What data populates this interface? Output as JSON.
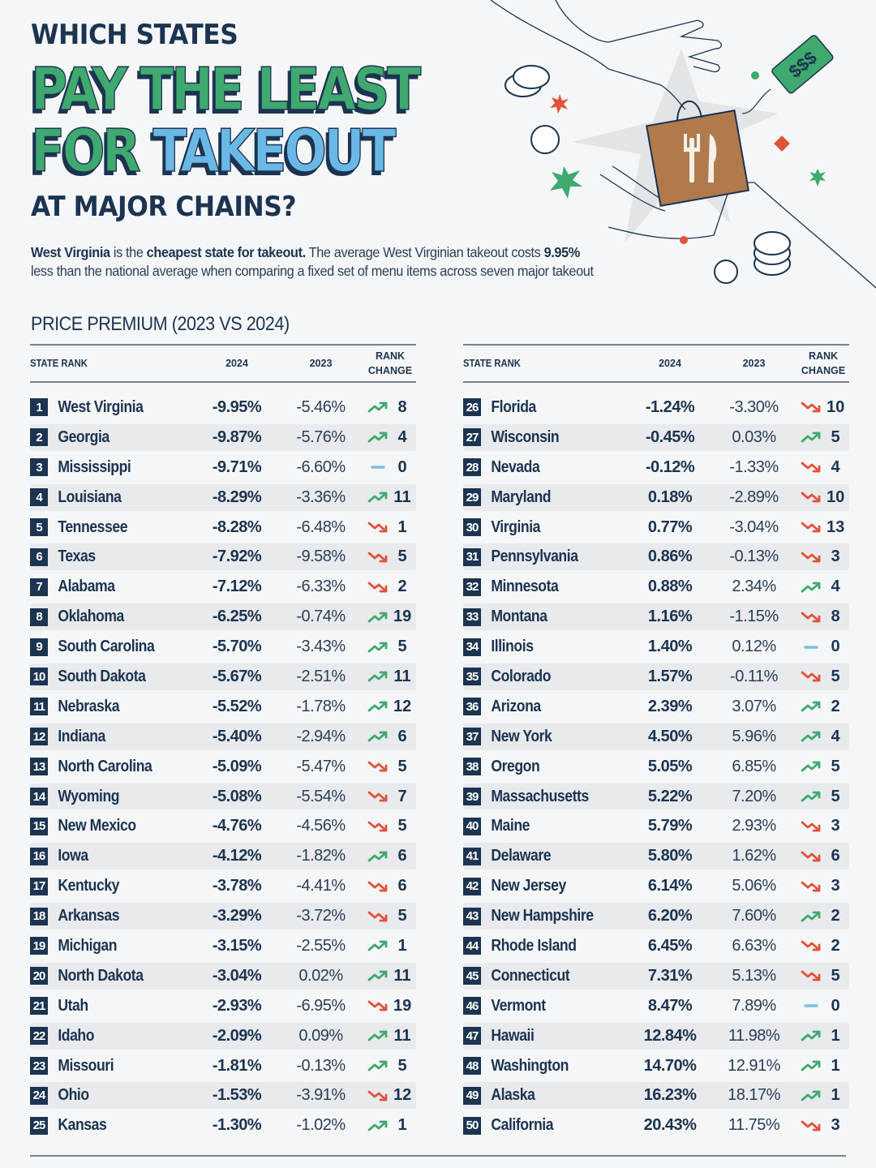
{
  "header": {
    "kicker": "WHICH STATES",
    "line1": "PAY THE LEAST",
    "line2_green": "FOR ",
    "line2_blue": "TAKEOUT",
    "subtitle": "AT MAJOR CHAINS?"
  },
  "intro": {
    "bold1": "West Virginia",
    "text1": " is the ",
    "bold2": "cheapest state for takeout.",
    "text2": " The average West Virginian takeout costs ",
    "bold3": "9.95%",
    "text3": " less than the national average when comparing a fixed set of menu items across seven major takeout"
  },
  "illustration": {
    "price_tag": "$$$",
    "icons": [
      "hand-icon",
      "takeout-bag-icon",
      "fork-knife-icon",
      "price-tag-icon",
      "coin-icon",
      "sparkle-icon"
    ]
  },
  "section_title": "PRICE PREMIUM (2023 VS 2024)",
  "columns": {
    "state_rank": "STATE RANK",
    "y2024": "2024",
    "y2023": "2023",
    "rank_change_1": "RANK",
    "rank_change_2": "CHANGE"
  },
  "colors": {
    "navy": "#1c3450",
    "green": "#3fa96f",
    "blue": "#6ab8e6",
    "up": "#3fa96f",
    "down": "#e0533a",
    "same": "#7fbfe3",
    "row_shade": "#e8eaed"
  },
  "chart_data": {
    "type": "table",
    "title": "PRICE PREMIUM (2023 VS 2024)",
    "columns": [
      "Rank",
      "State",
      "2024",
      "2023",
      "Rank Change Direction",
      "Rank Change"
    ],
    "rows": [
      {
        "rank": 1,
        "state": "West Virginia",
        "y2024": "-9.95%",
        "y2023": "-5.46%",
        "dir": "up",
        "change": 8
      },
      {
        "rank": 2,
        "state": "Georgia",
        "y2024": "-9.87%",
        "y2023": "-5.76%",
        "dir": "up",
        "change": 4
      },
      {
        "rank": 3,
        "state": "Mississippi",
        "y2024": "-9.71%",
        "y2023": "-6.60%",
        "dir": "same",
        "change": 0
      },
      {
        "rank": 4,
        "state": "Louisiana",
        "y2024": "-8.29%",
        "y2023": "-3.36%",
        "dir": "up",
        "change": 11
      },
      {
        "rank": 5,
        "state": "Tennessee",
        "y2024": "-8.28%",
        "y2023": "-6.48%",
        "dir": "down",
        "change": 1
      },
      {
        "rank": 6,
        "state": "Texas",
        "y2024": "-7.92%",
        "y2023": "-9.58%",
        "dir": "down",
        "change": 5
      },
      {
        "rank": 7,
        "state": "Alabama",
        "y2024": "-7.12%",
        "y2023": "-6.33%",
        "dir": "down",
        "change": 2
      },
      {
        "rank": 8,
        "state": "Oklahoma",
        "y2024": "-6.25%",
        "y2023": "-0.74%",
        "dir": "up",
        "change": 19
      },
      {
        "rank": 9,
        "state": "South Carolina",
        "y2024": "-5.70%",
        "y2023": "-3.43%",
        "dir": "up",
        "change": 5
      },
      {
        "rank": 10,
        "state": "South Dakota",
        "y2024": "-5.67%",
        "y2023": "-2.51%",
        "dir": "up",
        "change": 11
      },
      {
        "rank": 11,
        "state": "Nebraska",
        "y2024": "-5.52%",
        "y2023": "-1.78%",
        "dir": "up",
        "change": 12
      },
      {
        "rank": 12,
        "state": "Indiana",
        "y2024": "-5.40%",
        "y2023": "-2.94%",
        "dir": "up",
        "change": 6
      },
      {
        "rank": 13,
        "state": "North Carolina",
        "y2024": "-5.09%",
        "y2023": "-5.47%",
        "dir": "down",
        "change": 5
      },
      {
        "rank": 14,
        "state": "Wyoming",
        "y2024": "-5.08%",
        "y2023": "-5.54%",
        "dir": "down",
        "change": 7
      },
      {
        "rank": 15,
        "state": "New Mexico",
        "y2024": "-4.76%",
        "y2023": "-4.56%",
        "dir": "down",
        "change": 5
      },
      {
        "rank": 16,
        "state": "Iowa",
        "y2024": "-4.12%",
        "y2023": "-1.82%",
        "dir": "up",
        "change": 6
      },
      {
        "rank": 17,
        "state": "Kentucky",
        "y2024": "-3.78%",
        "y2023": "-4.41%",
        "dir": "down",
        "change": 6
      },
      {
        "rank": 18,
        "state": "Arkansas",
        "y2024": "-3.29%",
        "y2023": "-3.72%",
        "dir": "down",
        "change": 5
      },
      {
        "rank": 19,
        "state": "Michigan",
        "y2024": "-3.15%",
        "y2023": "-2.55%",
        "dir": "up",
        "change": 1
      },
      {
        "rank": 20,
        "state": "North Dakota",
        "y2024": "-3.04%",
        "y2023": "0.02%",
        "dir": "up",
        "change": 11
      },
      {
        "rank": 21,
        "state": "Utah",
        "y2024": "-2.93%",
        "y2023": "-6.95%",
        "dir": "down",
        "change": 19
      },
      {
        "rank": 22,
        "state": "Idaho",
        "y2024": "-2.09%",
        "y2023": "0.09%",
        "dir": "up",
        "change": 11
      },
      {
        "rank": 23,
        "state": "Missouri",
        "y2024": "-1.81%",
        "y2023": "-0.13%",
        "dir": "up",
        "change": 5
      },
      {
        "rank": 24,
        "state": "Ohio",
        "y2024": "-1.53%",
        "y2023": "-3.91%",
        "dir": "down",
        "change": 12
      },
      {
        "rank": 25,
        "state": "Kansas",
        "y2024": "-1.30%",
        "y2023": "-1.02%",
        "dir": "up",
        "change": 1
      },
      {
        "rank": 26,
        "state": "Florida",
        "y2024": "-1.24%",
        "y2023": "-3.30%",
        "dir": "down",
        "change": 10
      },
      {
        "rank": 27,
        "state": "Wisconsin",
        "y2024": "-0.45%",
        "y2023": "0.03%",
        "dir": "up",
        "change": 5
      },
      {
        "rank": 28,
        "state": "Nevada",
        "y2024": "-0.12%",
        "y2023": "-1.33%",
        "dir": "down",
        "change": 4
      },
      {
        "rank": 29,
        "state": "Maryland",
        "y2024": "0.18%",
        "y2023": "-2.89%",
        "dir": "down",
        "change": 10
      },
      {
        "rank": 30,
        "state": "Virginia",
        "y2024": "0.77%",
        "y2023": "-3.04%",
        "dir": "down",
        "change": 13
      },
      {
        "rank": 31,
        "state": "Pennsylvania",
        "y2024": "0.86%",
        "y2023": "-0.13%",
        "dir": "down",
        "change": 3
      },
      {
        "rank": 32,
        "state": "Minnesota",
        "y2024": "0.88%",
        "y2023": "2.34%",
        "dir": "up",
        "change": 4
      },
      {
        "rank": 33,
        "state": "Montana",
        "y2024": "1.16%",
        "y2023": "-1.15%",
        "dir": "down",
        "change": 8
      },
      {
        "rank": 34,
        "state": "Illinois",
        "y2024": "1.40%",
        "y2023": "0.12%",
        "dir": "same",
        "change": 0
      },
      {
        "rank": 35,
        "state": "Colorado",
        "y2024": "1.57%",
        "y2023": "-0.11%",
        "dir": "down",
        "change": 5
      },
      {
        "rank": 36,
        "state": "Arizona",
        "y2024": "2.39%",
        "y2023": "3.07%",
        "dir": "up",
        "change": 2
      },
      {
        "rank": 37,
        "state": "New York",
        "y2024": "4.50%",
        "y2023": "5.96%",
        "dir": "up",
        "change": 4
      },
      {
        "rank": 38,
        "state": "Oregon",
        "y2024": "5.05%",
        "y2023": "6.85%",
        "dir": "up",
        "change": 5
      },
      {
        "rank": 39,
        "state": "Massachusetts",
        "y2024": "5.22%",
        "y2023": "7.20%",
        "dir": "up",
        "change": 5
      },
      {
        "rank": 40,
        "state": "Maine",
        "y2024": "5.79%",
        "y2023": "2.93%",
        "dir": "down",
        "change": 3
      },
      {
        "rank": 41,
        "state": "Delaware",
        "y2024": "5.80%",
        "y2023": "1.62%",
        "dir": "down",
        "change": 6
      },
      {
        "rank": 42,
        "state": "New Jersey",
        "y2024": "6.14%",
        "y2023": "5.06%",
        "dir": "down",
        "change": 3
      },
      {
        "rank": 43,
        "state": "New Hampshire",
        "y2024": "6.20%",
        "y2023": "7.60%",
        "dir": "up",
        "change": 2
      },
      {
        "rank": 44,
        "state": "Rhode Island",
        "y2024": "6.45%",
        "y2023": "6.63%",
        "dir": "down",
        "change": 2
      },
      {
        "rank": 45,
        "state": "Connecticut",
        "y2024": "7.31%",
        "y2023": "5.13%",
        "dir": "down",
        "change": 5
      },
      {
        "rank": 46,
        "state": "Vermont",
        "y2024": "8.47%",
        "y2023": "7.89%",
        "dir": "same",
        "change": 0
      },
      {
        "rank": 47,
        "state": "Hawaii",
        "y2024": "12.84%",
        "y2023": "11.98%",
        "dir": "up",
        "change": 1
      },
      {
        "rank": 48,
        "state": "Washington",
        "y2024": "14.70%",
        "y2023": "12.91%",
        "dir": "up",
        "change": 1
      },
      {
        "rank": 49,
        "state": "Alaska",
        "y2024": "16.23%",
        "y2023": "18.17%",
        "dir": "up",
        "change": 1
      },
      {
        "rank": 50,
        "state": "California",
        "y2024": "20.43%",
        "y2023": "11.75%",
        "dir": "down",
        "change": 3
      }
    ]
  }
}
